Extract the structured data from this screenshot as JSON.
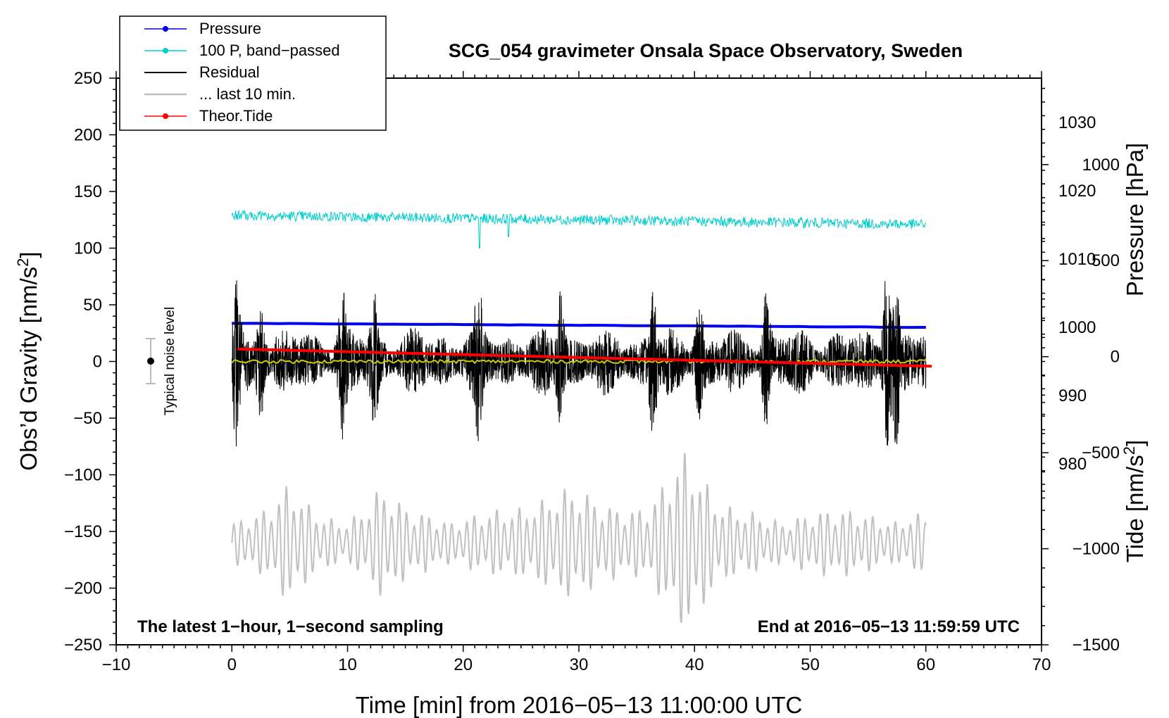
{
  "chart_data": {
    "type": "line",
    "title": "SCG_054 gravimeter Onsala Space Observatory, Sweden",
    "xlabel": "Time [min] from 2016−05−13 11:00:00 UTC",
    "ylabel_main": "Obs’d Gravity [nm/s",
    "ylabel_main_sup": "2",
    "ylabel_main_end": "]",
    "ylabel_pressure": "Pressure [hPa]",
    "ylabel_tide": "Tide [nm/s",
    "ylabel_tide_sup": "2",
    "ylabel_tide_end": "]",
    "xlim": [
      -10,
      70
    ],
    "ylim": [
      -250,
      250
    ],
    "x_ticks": [
      -10,
      0,
      10,
      20,
      30,
      40,
      50,
      60,
      70
    ],
    "x_tick_labels": [
      "−10",
      "0",
      "10",
      "20",
      "30",
      "40",
      "50",
      "60",
      "70"
    ],
    "y_ticks": [
      -250,
      -200,
      -150,
      -100,
      -50,
      0,
      50,
      100,
      150,
      200,
      250
    ],
    "y_tick_labels": [
      "−250",
      "−200",
      "−150",
      "−100",
      "−50",
      "0",
      "50",
      "100",
      "150",
      "200",
      "250"
    ],
    "pressure_axis": {
      "range": [
        953.5,
        1036.5
      ],
      "ticks": [
        980,
        990,
        1000,
        1010,
        1020,
        1030
      ],
      "tick_labels": [
        "980",
        "990",
        "1000",
        "1010",
        "1020",
        "1030"
      ]
    },
    "tide_axis": {
      "range": [
        -1500,
        1450
      ],
      "ticks": [
        -1500,
        -1000,
        -500,
        0,
        500,
        1000
      ],
      "tick_labels": [
        "−1500",
        "−1000",
        "−500",
        "0",
        "500",
        "1000"
      ]
    },
    "series": [
      {
        "name": "Pressure",
        "color": "#0000ee",
        "axis": "pressure",
        "x_range": [
          0,
          60
        ],
        "start": 1000.6,
        "end": 1000.0
      },
      {
        "name": "100 P, band−passed",
        "color": "#00cccc",
        "axis": "main",
        "x_range": [
          0,
          60
        ],
        "start": 129,
        "end": 121
      },
      {
        "name": "Residual",
        "color": "#000000",
        "axis": "main",
        "x_range": [
          0,
          60
        ],
        "amplitude": 45,
        "peak_max": 80,
        "peak_min": -75
      },
      {
        "name": "... last 10 min.",
        "color": "#c0c0c0",
        "axis": "main",
        "x_range": [
          0,
          60
        ],
        "center": -160,
        "max": -75,
        "min": -230
      },
      {
        "name": "Theor.Tide",
        "color": "#ff0000",
        "axis": "tide",
        "x_range": [
          0.5,
          60.5
        ],
        "start": 40,
        "end": -50
      },
      {
        "name": "Low-pass residual",
        "color": "#cccc00",
        "axis": "main",
        "x_range": [
          0,
          60
        ],
        "value": 0
      }
    ],
    "legend": [
      "Pressure",
      "100 P, band−passed",
      "Residual",
      "... last 10 min.",
      "Theor.Tide"
    ],
    "legend_position": "top-left",
    "annotations": {
      "bottom_left": "The latest 1−hour, 1−second sampling",
      "bottom_right": "End at 2016−05−13 11:59:59 UTC",
      "noise_label": "Typical noise level",
      "noise_bar": {
        "x": -7,
        "center": 0,
        "half_range": 20
      }
    }
  }
}
